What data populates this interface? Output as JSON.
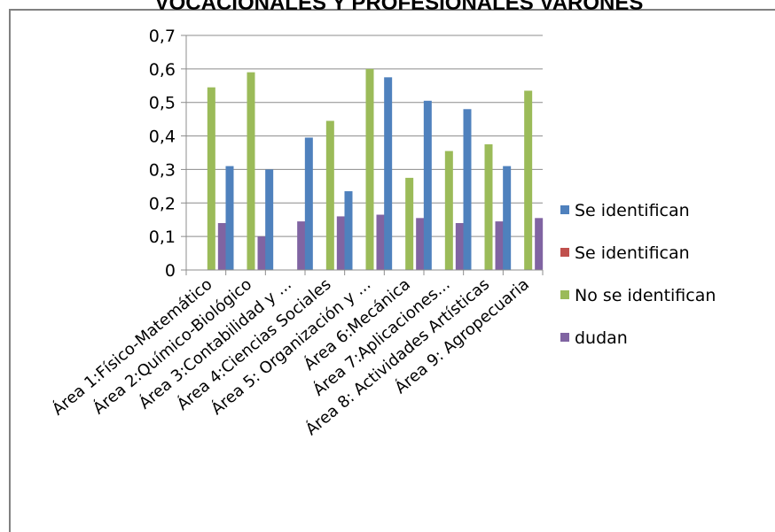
{
  "chart_data": {
    "type": "bar",
    "title": "VOCACIONALES Y PROFESIONALES VARONES",
    "xlabel": "",
    "ylabel": "",
    "ylim": [
      0,
      0.7
    ],
    "yticks": [
      "0",
      "0,1",
      "0,2",
      "0,3",
      "0,4",
      "0,5",
      "0,6",
      "0,7"
    ],
    "grid": true,
    "legend_position": "right",
    "categories": [
      "Área 1:Físico-Matemático",
      "Área 2:Químico-Biológico",
      "Área 3:Contabilidad y ...",
      "Área 4:Ciencias Sociales",
      "Área 5: Organización y ...",
      "Área 6:Mecánica",
      "Área 7:Aplicaciones...",
      "Área 8: Actividades Artísticas",
      "Área 9: Agropecuaria"
    ],
    "series": [
      {
        "name": "Se identifican",
        "color": "#4f81bd",
        "values": [
          0,
          0.31,
          0.3,
          0.395,
          0.235,
          0.575,
          0.505,
          0.48,
          0.31
        ]
      },
      {
        "name": "Se identifican",
        "color": "#c0504d",
        "values": [
          0,
          0,
          0,
          0,
          0,
          0,
          0,
          0,
          0
        ]
      },
      {
        "name": "No se identifican",
        "color": "#9bbb59",
        "values": [
          0.545,
          0.59,
          0,
          0.445,
          0.6,
          0.275,
          0.355,
          0.375,
          0.535
        ]
      },
      {
        "name": "dudan",
        "color": "#8064a2",
        "values": [
          0.14,
          0.1,
          0.145,
          0.16,
          0.165,
          0.155,
          0.14,
          0.145,
          0.155
        ]
      }
    ]
  }
}
